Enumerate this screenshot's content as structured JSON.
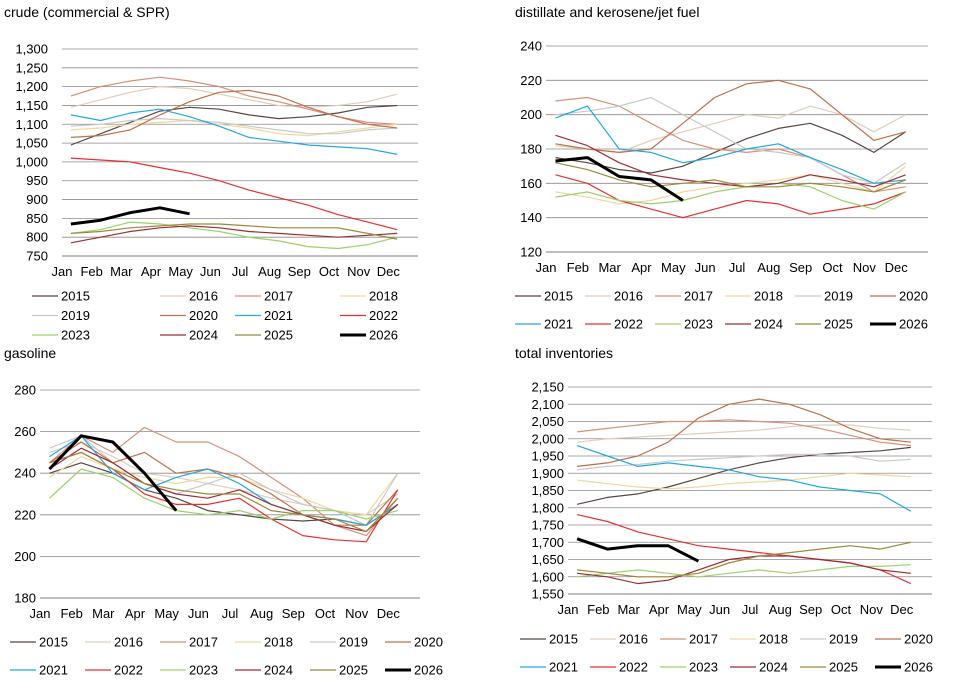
{
  "months": [
    "Jan",
    "Feb",
    "Mar",
    "Apr",
    "May",
    "Jun",
    "Jul",
    "Aug",
    "Sep",
    "Oct",
    "Nov",
    "Dec"
  ],
  "series_meta": [
    {
      "name": "2015",
      "color": "#5a4741",
      "width": 1.2
    },
    {
      "name": "2016",
      "color": "#e3cdb9",
      "width": 1.2
    },
    {
      "name": "2017",
      "color": "#d98f7c",
      "width": 1.2
    },
    {
      "name": "2018",
      "color": "#f2d79c",
      "width": 1.2
    },
    {
      "name": "2019",
      "color": "#c9c9c9",
      "width": 1.2
    },
    {
      "name": "2020",
      "color": "#c0704a",
      "width": 1.2
    },
    {
      "name": "2021",
      "color": "#22a9e0",
      "width": 1.2
    },
    {
      "name": "2022",
      "color": "#e8312f",
      "width": 1.2
    },
    {
      "name": "2023",
      "color": "#9ad26a",
      "width": 1.2
    },
    {
      "name": "2024",
      "color": "#9c2d35",
      "width": 1.2
    },
    {
      "name": "2025",
      "color": "#9b8a3a",
      "width": 1.2
    },
    {
      "name": "2026",
      "color": "#000000",
      "width": 3
    }
  ],
  "chart_data": [
    {
      "type": "line",
      "title": "crude (commercial & SPR)",
      "ylim": [
        750,
        1300
      ],
      "yticks": [
        "750",
        "800",
        "850",
        "900",
        "950",
        "1,000",
        "1,050",
        "1,100",
        "1,150",
        "1,200",
        "1,250",
        "1,300"
      ],
      "x": [
        "Jan",
        "Feb",
        "Mar",
        "Apr",
        "May",
        "Jun",
        "Jul",
        "Aug",
        "Sep",
        "Oct",
        "Nov",
        "Dec"
      ],
      "grid": true,
      "legend": "below",
      "series": [
        {
          "name": "2015",
          "values": [
            1045,
            1075,
            1105,
            1135,
            1145,
            1140,
            1125,
            1115,
            1120,
            1130,
            1145,
            1150
          ]
        },
        {
          "name": "2016",
          "values": [
            1145,
            1165,
            1185,
            1200,
            1195,
            1180,
            1165,
            1150,
            1145,
            1150,
            1160,
            1180
          ]
        },
        {
          "name": "2017",
          "values": [
            1175,
            1200,
            1215,
            1225,
            1215,
            1200,
            1175,
            1160,
            1140,
            1120,
            1105,
            1100
          ]
        },
        {
          "name": "2018",
          "values": [
            1085,
            1090,
            1100,
            1105,
            1110,
            1100,
            1090,
            1075,
            1070,
            1080,
            1090,
            1100
          ]
        },
        {
          "name": "2019",
          "values": [
            1095,
            1100,
            1110,
            1115,
            1110,
            1105,
            1095,
            1085,
            1075,
            1075,
            1085,
            1090
          ]
        },
        {
          "name": "2020",
          "values": [
            1065,
            1070,
            1085,
            1125,
            1160,
            1185,
            1190,
            1175,
            1145,
            1120,
            1100,
            1090
          ]
        },
        {
          "name": "2021",
          "values": [
            1125,
            1110,
            1130,
            1140,
            1120,
            1095,
            1065,
            1055,
            1045,
            1040,
            1035,
            1020
          ]
        },
        {
          "name": "2022",
          "values": [
            1010,
            1005,
            1000,
            985,
            970,
            950,
            925,
            905,
            885,
            860,
            840,
            820
          ]
        },
        {
          "name": "2023",
          "values": [
            810,
            820,
            840,
            835,
            825,
            815,
            800,
            790,
            775,
            770,
            780,
            800
          ]
        },
        {
          "name": "2024",
          "values": [
            785,
            800,
            815,
            825,
            830,
            825,
            815,
            810,
            805,
            800,
            805,
            810
          ]
        },
        {
          "name": "2025",
          "values": [
            810,
            815,
            825,
            830,
            835,
            835,
            830,
            825,
            825,
            825,
            810,
            795
          ]
        },
        {
          "name": "2026",
          "values": [
            835,
            845,
            865,
            878,
            862,
            null,
            null,
            null,
            null,
            null,
            null,
            null
          ]
        }
      ]
    },
    {
      "type": "line",
      "title": "distillate and kerosene/jet fuel",
      "ylim": [
        120,
        240
      ],
      "yticks": [
        "120",
        "140",
        "160",
        "180",
        "200",
        "220",
        "240"
      ],
      "x": [
        "Jan",
        "Feb",
        "Mar",
        "Apr",
        "May",
        "Jun",
        "Jul",
        "Aug",
        "Sep",
        "Oct",
        "Nov",
        "Dec"
      ],
      "grid": true,
      "legend": "below",
      "series": [
        {
          "name": "2015",
          "values": [
            175,
            172,
            168,
            166,
            170,
            178,
            186,
            192,
            195,
            188,
            178,
            190
          ]
        },
        {
          "name": "2016",
          "values": [
            182,
            180,
            178,
            185,
            190,
            195,
            200,
            198,
            205,
            200,
            190,
            200
          ]
        },
        {
          "name": "2017",
          "values": [
            208,
            210,
            205,
            195,
            185,
            180,
            178,
            180,
            175,
            165,
            155,
            158
          ]
        },
        {
          "name": "2018",
          "values": [
            155,
            152,
            148,
            150,
            155,
            158,
            160,
            162,
            165,
            160,
            155,
            170
          ]
        },
        {
          "name": "2019",
          "values": [
            200,
            202,
            205,
            210,
            200,
            190,
            180,
            178,
            175,
            165,
            160,
            172
          ]
        },
        {
          "name": "2020",
          "values": [
            183,
            180,
            178,
            180,
            195,
            210,
            218,
            220,
            215,
            200,
            185,
            190
          ]
        },
        {
          "name": "2021",
          "values": [
            198,
            205,
            180,
            178,
            172,
            175,
            180,
            183,
            175,
            168,
            160,
            162
          ]
        },
        {
          "name": "2022",
          "values": [
            165,
            160,
            150,
            145,
            140,
            145,
            150,
            148,
            142,
            145,
            148,
            155
          ]
        },
        {
          "name": "2023",
          "values": [
            152,
            155,
            150,
            148,
            150,
            155,
            158,
            160,
            158,
            150,
            145,
            155
          ]
        },
        {
          "name": "2024",
          "values": [
            188,
            182,
            172,
            165,
            162,
            160,
            158,
            160,
            165,
            162,
            158,
            165
          ]
        },
        {
          "name": "2025",
          "values": [
            172,
            168,
            162,
            158,
            160,
            162,
            158,
            158,
            160,
            158,
            155,
            162
          ]
        },
        {
          "name": "2026",
          "values": [
            173,
            175,
            164,
            162,
            150,
            null,
            null,
            null,
            null,
            null,
            null,
            null
          ]
        }
      ]
    },
    {
      "type": "line",
      "title": "gasoline",
      "ylim": [
        180,
        280
      ],
      "yticks": [
        "180",
        "200",
        "220",
        "240",
        "260",
        "280"
      ],
      "x": [
        "Jan",
        "Feb",
        "Mar",
        "Apr",
        "May",
        "Jun",
        "Jul",
        "Aug",
        "Sep",
        "Oct",
        "Nov",
        "Dec"
      ],
      "grid": true,
      "legend": "below",
      "series": [
        {
          "name": "2015",
          "values": [
            240,
            245,
            240,
            232,
            228,
            222,
            220,
            218,
            217,
            218,
            215,
            225
          ]
        },
        {
          "name": "2016",
          "values": [
            250,
            255,
            248,
            240,
            238,
            235,
            232,
            228,
            225,
            222,
            220,
            230
          ]
        },
        {
          "name": "2017",
          "values": [
            245,
            258,
            250,
            262,
            255,
            255,
            248,
            238,
            228,
            215,
            210,
            228
          ]
        },
        {
          "name": "2018",
          "values": [
            238,
            248,
            242,
            238,
            235,
            238,
            238,
            232,
            228,
            222,
            220,
            240
          ]
        },
        {
          "name": "2019",
          "values": [
            252,
            258,
            245,
            235,
            230,
            235,
            240,
            232,
            225,
            222,
            215,
            240
          ]
        },
        {
          "name": "2020",
          "values": [
            245,
            255,
            245,
            250,
            240,
            242,
            238,
            230,
            220,
            215,
            215,
            232
          ]
        },
        {
          "name": "2021",
          "values": [
            248,
            258,
            240,
            232,
            238,
            242,
            235,
            225,
            220,
            218,
            215,
            225
          ]
        },
        {
          "name": "2022",
          "values": [
            245,
            250,
            242,
            230,
            225,
            225,
            228,
            218,
            210,
            208,
            207,
            232
          ]
        },
        {
          "name": "2023",
          "values": [
            228,
            242,
            238,
            228,
            222,
            220,
            222,
            218,
            222,
            222,
            218,
            222
          ]
        },
        {
          "name": "2024",
          "values": [
            242,
            252,
            245,
            235,
            230,
            228,
            232,
            225,
            220,
            215,
            212,
            225
          ]
        },
        {
          "name": "2025",
          "values": [
            245,
            250,
            242,
            235,
            232,
            230,
            230,
            222,
            220,
            218,
            212,
            228
          ]
        },
        {
          "name": "2026",
          "values": [
            242,
            258,
            255,
            240,
            222,
            null,
            null,
            null,
            null,
            null,
            null,
            null
          ]
        }
      ]
    },
    {
      "type": "line",
      "title": "total inventories",
      "ylim": [
        1550,
        2150
      ],
      "yticks": [
        "1,550",
        "1,600",
        "1,650",
        "1,700",
        "1,750",
        "1,800",
        "1,850",
        "1,900",
        "1,950",
        "2,000",
        "2,050",
        "2,100",
        "2,150"
      ],
      "x": [
        "Jan",
        "Feb",
        "Mar",
        "Apr",
        "May",
        "Jun",
        "Jul",
        "Aug",
        "Sep",
        "Oct",
        "Nov",
        "Dec"
      ],
      "grid": true,
      "legend": "below",
      "series": [
        {
          "name": "2015",
          "values": [
            1810,
            1830,
            1840,
            1860,
            1885,
            1910,
            1930,
            1945,
            1955,
            1960,
            1965,
            1975
          ]
        },
        {
          "name": "2016",
          "values": [
            1990,
            2000,
            2005,
            2010,
            2015,
            2020,
            2025,
            2035,
            2040,
            2040,
            2030,
            2025
          ]
        },
        {
          "name": "2017",
          "values": [
            2020,
            2030,
            2040,
            2050,
            2050,
            2055,
            2050,
            2045,
            2030,
            2010,
            1990,
            1980
          ]
        },
        {
          "name": "2018",
          "values": [
            1880,
            1870,
            1860,
            1855,
            1860,
            1870,
            1875,
            1880,
            1890,
            1900,
            1895,
            1890
          ]
        },
        {
          "name": "2019",
          "values": [
            1910,
            1920,
            1925,
            1935,
            1940,
            1945,
            1950,
            1955,
            1955,
            1950,
            1935,
            1940
          ]
        },
        {
          "name": "2020",
          "values": [
            1920,
            1930,
            1950,
            1990,
            2060,
            2100,
            2115,
            2100,
            2070,
            2030,
            2000,
            1990
          ]
        },
        {
          "name": "2021",
          "values": [
            1980,
            1950,
            1920,
            1930,
            1920,
            1910,
            1890,
            1880,
            1860,
            1850,
            1840,
            1790
          ]
        },
        {
          "name": "2022",
          "values": [
            1780,
            1760,
            1730,
            1710,
            1690,
            1680,
            1670,
            1660,
            1650,
            1640,
            1620,
            1580
          ]
        },
        {
          "name": "2023",
          "values": [
            1600,
            1610,
            1620,
            1610,
            1600,
            1610,
            1620,
            1610,
            1620,
            1630,
            1630,
            1635
          ]
        },
        {
          "name": "2024",
          "values": [
            1610,
            1600,
            1580,
            1590,
            1620,
            1650,
            1660,
            1660,
            1650,
            1640,
            1620,
            1610
          ]
        },
        {
          "name": "2025",
          "values": [
            1620,
            1610,
            1600,
            1600,
            1610,
            1640,
            1660,
            1670,
            1680,
            1690,
            1680,
            1700
          ]
        },
        {
          "name": "2026",
          "values": [
            1710,
            1680,
            1690,
            1690,
            1645,
            null,
            null,
            null,
            null,
            null,
            null,
            null
          ]
        }
      ]
    }
  ]
}
